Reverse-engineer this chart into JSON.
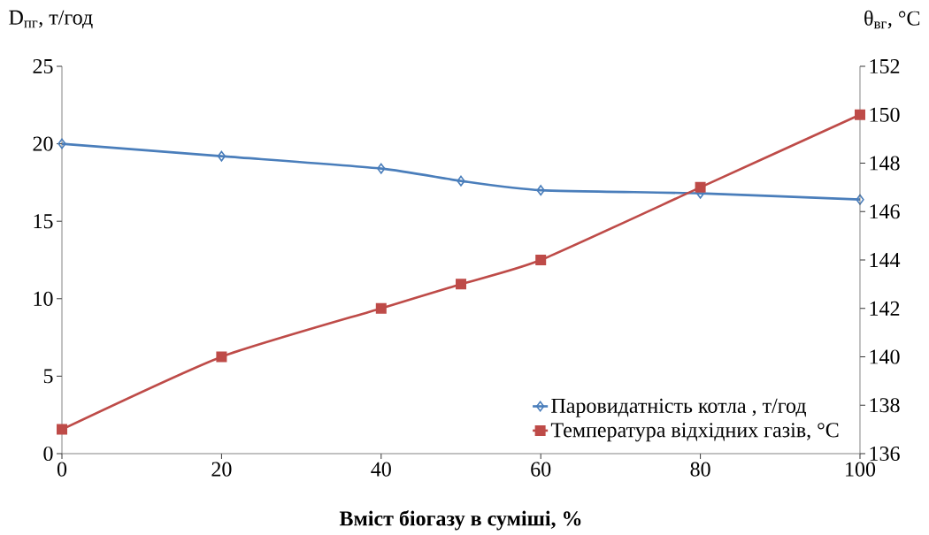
{
  "chart_data": {
    "type": "line",
    "xlabel": "Вміст біогазу в суміші, %",
    "ylabel": "D$_{пг}$, т/год",
    "y2label": "θ$_{вг}$, °C",
    "x": [
      0,
      20,
      40,
      50,
      60,
      80,
      100
    ],
    "xlim": [
      0,
      100
    ],
    "xticks": [
      0,
      20,
      40,
      60,
      80,
      100
    ],
    "ylim": [
      0,
      25
    ],
    "yticks": [
      0,
      5,
      10,
      15,
      20,
      25
    ],
    "y2lim": [
      136,
      152
    ],
    "y2ticks": [
      136,
      138,
      140,
      142,
      144,
      146,
      148,
      150,
      152
    ],
    "series": [
      {
        "name": "Паровидатність котла , т/год",
        "color": "#4a7ebb",
        "marker": "diamond",
        "values": [
          20,
          19.2,
          18.4,
          17.6,
          17.0,
          16.8,
          16.4
        ]
      },
      {
        "name": "Температура відхідних газів, °C",
        "color": "#be4b48",
        "marker": "square",
        "axis": "y2",
        "values": [
          137,
          140,
          142,
          143,
          144,
          147,
          150
        ]
      }
    ],
    "legend": "bottom right",
    "grid": false,
    "line_style": "solid"
  }
}
